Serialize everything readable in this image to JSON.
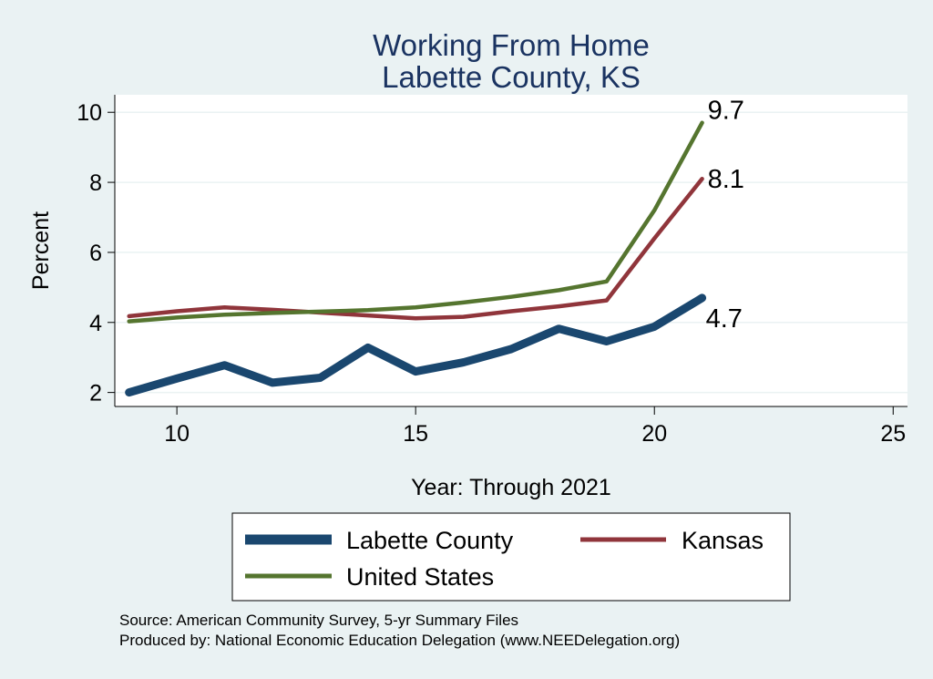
{
  "chart_data": {
    "type": "line",
    "title": "Working From Home",
    "subtitle": "Labette County, KS",
    "xlabel": "Year: Through 2021",
    "ylabel": "Percent",
    "xlim": [
      8.7,
      25.3
    ],
    "ylim": [
      1.6,
      10.5
    ],
    "xticks": [
      10,
      15,
      20,
      25
    ],
    "yticks": [
      2,
      4,
      6,
      8,
      10
    ],
    "grid": true,
    "legend_position": "bottom",
    "x": [
      9,
      10,
      11,
      12,
      13,
      14,
      15,
      16,
      17,
      18,
      19,
      20,
      21
    ],
    "series": [
      {
        "name": "Labette County",
        "color": "#1a476f",
        "values": [
          2.0,
          2.4,
          2.78,
          2.28,
          2.42,
          3.28,
          2.6,
          2.86,
          3.24,
          3.82,
          3.46,
          3.88,
          4.7
        ],
        "end_label": "4.7"
      },
      {
        "name": "Kansas",
        "color": "#90353b",
        "values": [
          4.18,
          4.32,
          4.43,
          4.36,
          4.28,
          4.2,
          4.12,
          4.16,
          4.32,
          4.46,
          4.63,
          6.4,
          8.1
        ],
        "end_label": "8.1"
      },
      {
        "name": "United States",
        "color": "#55752f",
        "values": [
          4.03,
          4.14,
          4.22,
          4.27,
          4.31,
          4.35,
          4.43,
          4.57,
          4.73,
          4.92,
          5.17,
          7.2,
          9.7
        ],
        "end_label": "9.7"
      }
    ]
  },
  "footer": {
    "source": "Source: American Community Survey, 5-yr Summary Files",
    "produced_by": "Produced by: National Economic Education Delegation (www.NEEDelegation.org)"
  }
}
